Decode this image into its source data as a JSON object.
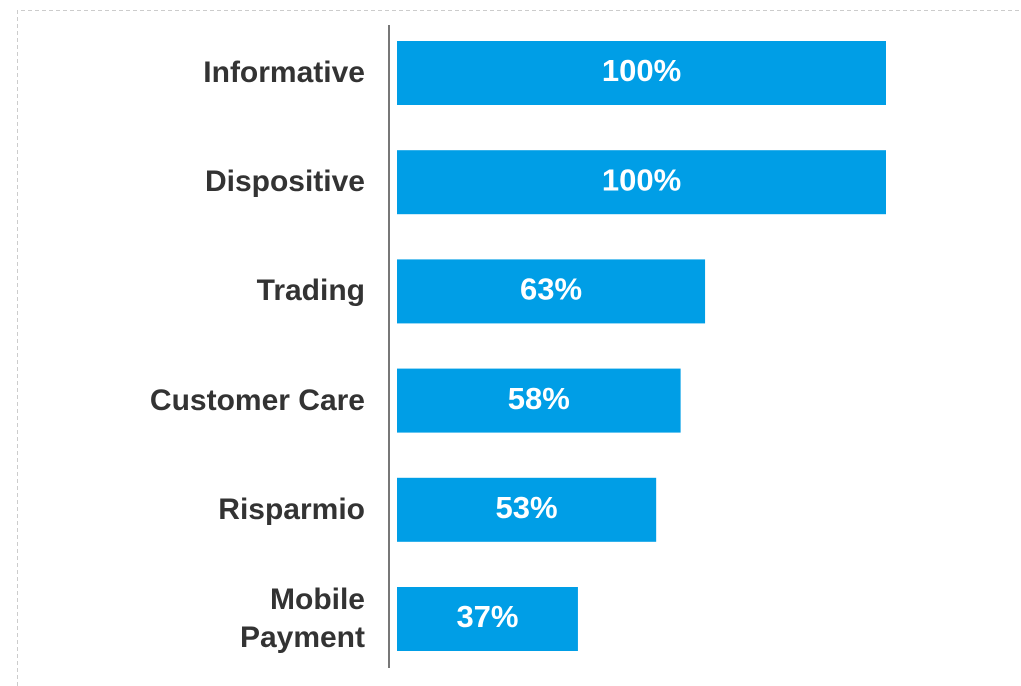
{
  "chart_data": {
    "type": "bar",
    "orientation": "horizontal",
    "categories": [
      "Informative",
      "Dispositive",
      "Trading",
      "Customer Care",
      "Risparmio",
      "Mobile\nPayment"
    ],
    "values": [
      100,
      100,
      63,
      58,
      53,
      37
    ],
    "value_labels": [
      "100%",
      "100%",
      "63%",
      "58%",
      "53%",
      "37%"
    ],
    "color": "#009ee6",
    "xlim": [
      0,
      100
    ]
  }
}
